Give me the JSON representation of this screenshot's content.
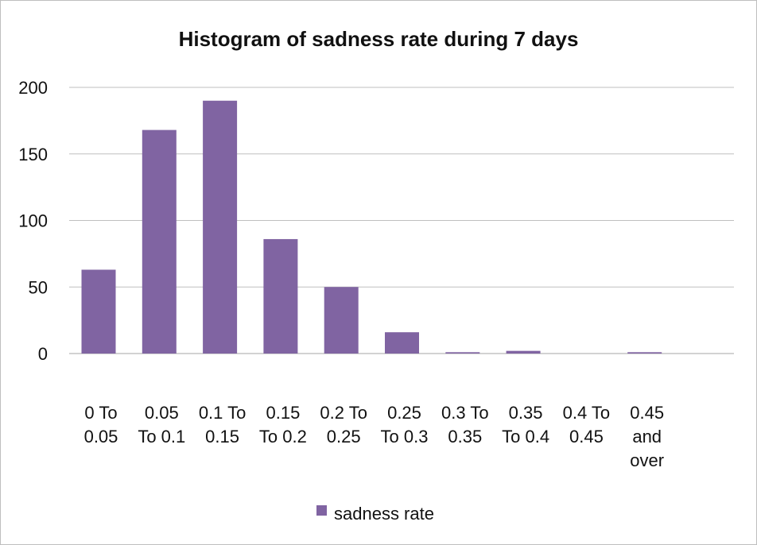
{
  "chart_data": {
    "type": "bar",
    "title": "Histogram of sadness rate during 7 days",
    "categories": [
      [
        "0 To",
        "0.05"
      ],
      [
        "0.05",
        "To 0.1"
      ],
      [
        "0.1 To",
        "0.15"
      ],
      [
        "0.15",
        "To 0.2"
      ],
      [
        "0.2 To",
        "0.25"
      ],
      [
        "0.25",
        "To 0.3"
      ],
      [
        "0.3 To",
        "0.35"
      ],
      [
        "0.35",
        "To 0.4"
      ],
      [
        "0.4 To",
        "0.45"
      ],
      [
        "0.45",
        "and",
        "over"
      ]
    ],
    "series": [
      {
        "name": "sadness rate",
        "color": "#8064a2",
        "values": [
          63,
          168,
          190,
          86,
          50,
          16,
          1,
          2,
          0,
          1
        ]
      }
    ],
    "ylim": [
      0,
      200
    ],
    "yticks": [
      0,
      50,
      100,
      150,
      200
    ],
    "grid": true,
    "legend": "bottom"
  }
}
